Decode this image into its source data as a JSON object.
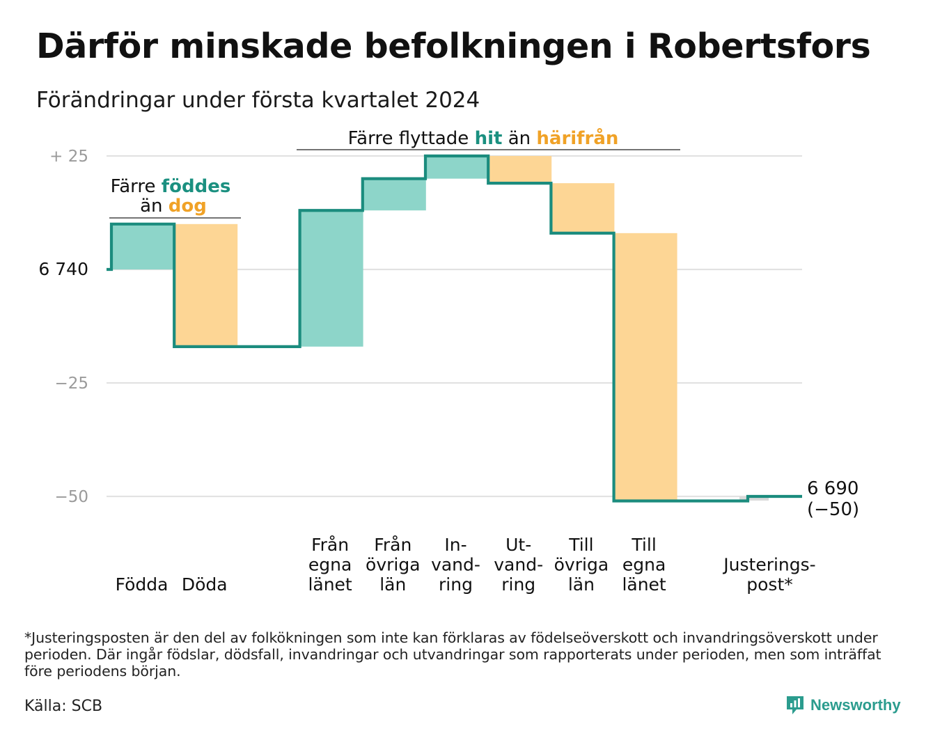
{
  "title": "Därför minskade befolkningen i Robertsfors",
  "subtitle": "Förändringar under första kvartalet 2024",
  "colors": {
    "increase": "#8dd5c9",
    "decrease": "#fdd695",
    "line": "#1b8c7e",
    "accent_teal": "#1b9080",
    "accent_orange": "#f0a227",
    "adjust": "#d9d9d9"
  },
  "annotations": {
    "births_deaths": {
      "line1_prefix": "Färre",
      "line1_highlight": "föddes",
      "line2_prefix": "än",
      "line2_highlight": "dog"
    },
    "migration": {
      "prefix": "Färre flyttade",
      "highlight_in": "hit",
      "middle": "än",
      "highlight_out": "härifrån"
    }
  },
  "chart_data": {
    "type": "waterfall",
    "start": {
      "label": "6 740",
      "value": 6740
    },
    "end": {
      "label_line1": "6 690",
      "label_line2": "(−50)",
      "value": 6690,
      "change": -50
    },
    "y_axis": {
      "ticks": [
        {
          "value": 25,
          "label": "+ 25"
        },
        {
          "value": 0,
          "label": "6 740"
        },
        {
          "value": -25,
          "label": "−25"
        },
        {
          "value": -50,
          "label": "−50"
        }
      ],
      "ylim": [
        -50,
        25
      ]
    },
    "steps": [
      {
        "label_lines": [
          "Födda"
        ],
        "change": 10,
        "kind": "increase"
      },
      {
        "label_lines": [
          "Döda"
        ],
        "change": -27,
        "kind": "decrease"
      },
      {
        "label_lines": [],
        "change": 0,
        "kind": "gap"
      },
      {
        "label_lines": [
          "Från",
          "egna",
          "länet"
        ],
        "change": 30,
        "kind": "increase"
      },
      {
        "label_lines": [
          "Från",
          "övriga",
          "län"
        ],
        "change": 7,
        "kind": "increase"
      },
      {
        "label_lines": [
          "In-",
          "vand-",
          "ring"
        ],
        "change": 5,
        "kind": "increase"
      },
      {
        "label_lines": [
          "Ut-",
          "vand-",
          "ring"
        ],
        "change": -6,
        "kind": "decrease"
      },
      {
        "label_lines": [
          "Till",
          "övriga",
          "län"
        ],
        "change": -11,
        "kind": "decrease"
      },
      {
        "label_lines": [
          "Till",
          "egna",
          "länet"
        ],
        "change": -59,
        "kind": "decrease"
      },
      {
        "label_lines": [],
        "change": 0,
        "kind": "gap"
      },
      {
        "label_lines": [
          "Justerings-",
          "post*"
        ],
        "change": 1,
        "kind": "adjust"
      }
    ]
  },
  "footnote": "*Justeringsposten är den del av folkökningen som inte kan förklaras av födelseöverskott och invandringsöverskott under perioden. Där ingår födslar, dödsfall, invandringar och utvandringar som rapporterats under perioden, men som inträffat före periodens början.",
  "source": "Källa: SCB",
  "brand": {
    "name": "Newsworthy",
    "icon": "newsworthy-logo-icon"
  }
}
